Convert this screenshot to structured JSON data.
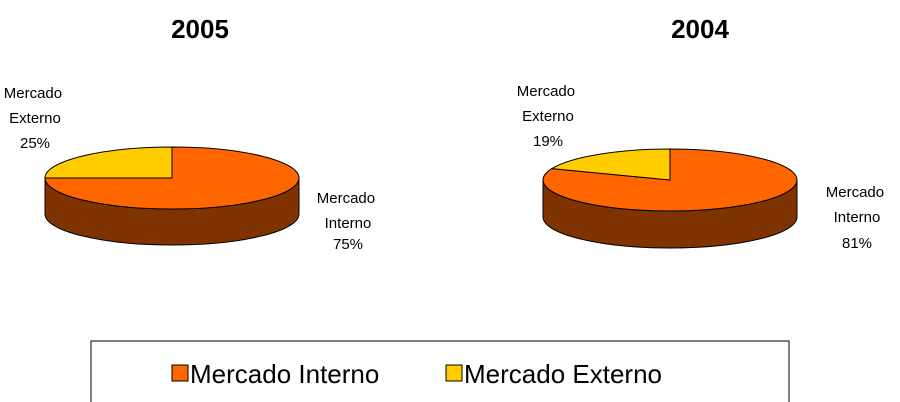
{
  "colors": {
    "interno_top": "#FF6600",
    "interno_side": "#7F3300",
    "externo_top": "#FFCC00",
    "externo_side": "#806600",
    "outline": "#000000"
  },
  "legend": {
    "items": [
      {
        "label": "Mercado Interno",
        "color": "#FF6600"
      },
      {
        "label": "Mercado Externo",
        "color": "#FFCC00"
      }
    ]
  },
  "chart_data": [
    {
      "type": "pie",
      "title": "2005",
      "style": "3d",
      "slices": [
        {
          "label": "Mercado Interno",
          "value": 75,
          "percent_label": "75%"
        },
        {
          "label": "Mercado Externo",
          "value": 25,
          "percent_label": "25%"
        }
      ],
      "legend_placement": "bottom"
    },
    {
      "type": "pie",
      "title": "2004",
      "style": "3d",
      "slices": [
        {
          "label": "Mercado Interno",
          "value": 81,
          "percent_label": "81%"
        },
        {
          "label": "Mercado Externo",
          "value": 19,
          "percent_label": "19%"
        }
      ],
      "legend_placement": "bottom"
    }
  ]
}
